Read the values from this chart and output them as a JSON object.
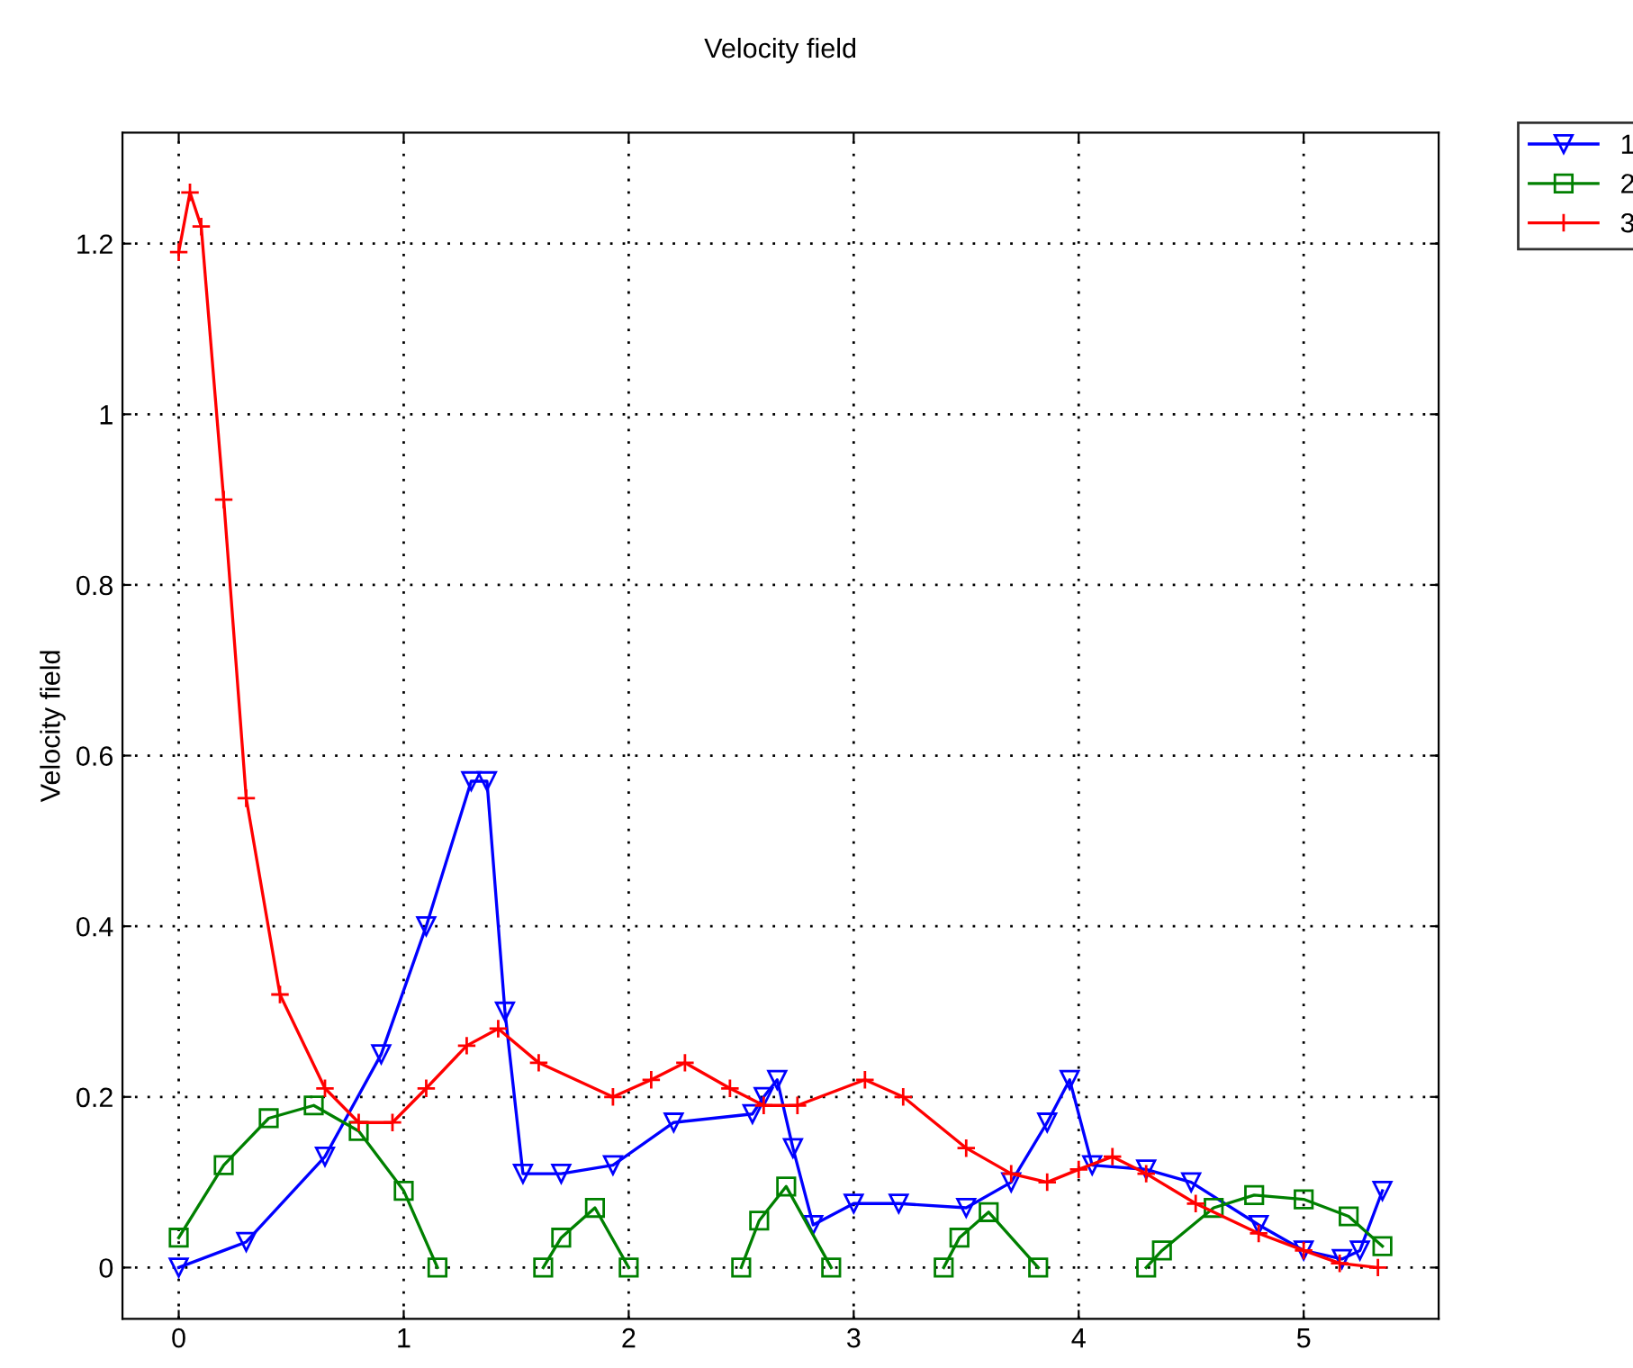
{
  "chart_data": {
    "type": "line",
    "title": "Velocity field",
    "ylabel": "Velocity field",
    "xlim": [
      -0.25,
      5.6
    ],
    "ylim": [
      -0.06,
      1.33
    ],
    "xticks": [
      0,
      1,
      2,
      3,
      4,
      5
    ],
    "yticks": [
      0,
      0.2,
      0.4,
      0.6,
      0.8,
      1,
      1.2
    ],
    "grid": true,
    "legend": "top right",
    "line_style": "solid",
    "series": [
      {
        "name": "1",
        "color": "#0000ff",
        "marker": "triangle",
        "x": [
          0,
          0.3,
          0.65,
          0.9,
          1.1,
          1.3,
          1.37,
          1.45,
          1.53,
          1.7,
          1.93,
          2.2,
          2.55,
          2.6,
          2.66,
          2.73,
          2.82,
          3.0,
          3.2,
          3.5,
          3.7,
          3.86,
          3.96,
          4.06,
          4.3,
          4.5,
          4.8,
          5.0,
          5.17,
          5.25,
          5.35
        ],
        "values": [
          0,
          0.03,
          0.13,
          0.25,
          0.4,
          0.57,
          0.57,
          0.3,
          0.11,
          0.11,
          0.12,
          0.17,
          0.18,
          0.2,
          0.22,
          0.14,
          0.05,
          0.075,
          0.075,
          0.07,
          0.1,
          0.17,
          0.22,
          0.12,
          0.115,
          0.1,
          0.05,
          0.02,
          0.01,
          0.02,
          0.09
        ]
      },
      {
        "name": "2",
        "color": "#008000",
        "marker": "square",
        "x": [
          0,
          0.2,
          0.4,
          0.6,
          0.8,
          1.0,
          1.15,
          1.4,
          1.62,
          1.7,
          1.85,
          2.0,
          2.25,
          2.5,
          2.58,
          2.7,
          2.9,
          3.15,
          3.4,
          3.47,
          3.6,
          3.82,
          4.05,
          4.3,
          4.37,
          4.6,
          4.78,
          5.0,
          5.2,
          5.35
        ],
        "values": [
          0.035,
          0.12,
          0.175,
          0.19,
          0.16,
          0.09,
          0,
          null,
          0,
          0.035,
          0.07,
          0,
          null,
          0,
          0.055,
          0.095,
          0,
          null,
          0,
          0.035,
          0.065,
          0,
          null,
          0,
          0.02,
          0.07,
          0.085,
          0.08,
          0.06,
          0.025
        ]
      },
      {
        "name": "3",
        "color": "#ff0000",
        "marker": "cross",
        "x": [
          0,
          0.05,
          0.1,
          0.2,
          0.3,
          0.45,
          0.65,
          0.8,
          0.95,
          1.1,
          1.28,
          1.42,
          1.6,
          1.93,
          2.1,
          2.25,
          2.45,
          2.6,
          2.75,
          3.05,
          3.22,
          3.5,
          3.7,
          3.86,
          4.0,
          4.15,
          4.3,
          4.52,
          4.8,
          5.0,
          5.16,
          5.33
        ],
        "values": [
          1.19,
          1.26,
          1.22,
          0.9,
          0.55,
          0.32,
          0.21,
          0.17,
          0.17,
          0.21,
          0.26,
          0.28,
          0.24,
          0.2,
          0.22,
          0.24,
          0.21,
          0.19,
          0.19,
          0.22,
          0.2,
          0.14,
          0.11,
          0.1,
          0.115,
          0.13,
          0.11,
          0.075,
          0.04,
          0.02,
          0.005,
          0
        ]
      }
    ]
  }
}
